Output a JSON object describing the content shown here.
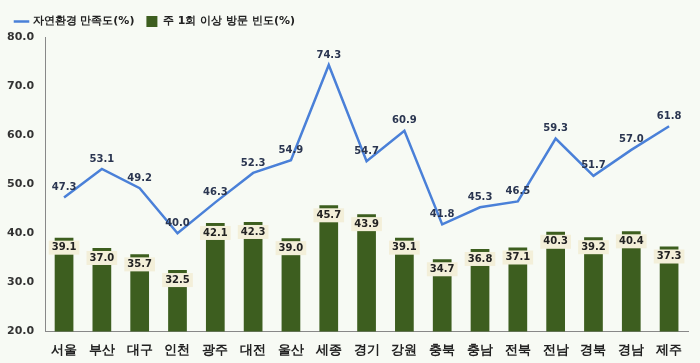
{
  "chart_data": {
    "type": "bar",
    "categories": [
      "서울",
      "부산",
      "대구",
      "인천",
      "광주",
      "대전",
      "울산",
      "세종",
      "경기",
      "강원",
      "충북",
      "충남",
      "전북",
      "전남",
      "경북",
      "경남",
      "제주"
    ],
    "series": [
      {
        "name": "주 1회 이상 방문 빈도(%)",
        "type": "bar",
        "color": "#3d5e1f",
        "values": [
          39.1,
          37.0,
          35.7,
          32.5,
          42.1,
          42.3,
          39.0,
          45.7,
          43.9,
          39.1,
          34.7,
          36.8,
          37.1,
          40.3,
          39.2,
          40.4,
          37.3
        ],
        "value_labels": [
          "39.1",
          "37.0",
          "35.7",
          "32.5",
          "42.1",
          "42.3",
          "39.0",
          "45.7",
          "43.9",
          "39.1",
          "34.7",
          "36.8",
          "37.1",
          "40.3",
          "39.2",
          "40.4",
          "37.3"
        ]
      },
      {
        "name": "자연환경 만족도(%)",
        "type": "line",
        "color": "#4a80d8",
        "marker": "none",
        "values": [
          47.3,
          53.1,
          49.2,
          40.0,
          46.3,
          52.3,
          54.9,
          74.3,
          54.7,
          60.9,
          41.8,
          45.3,
          46.5,
          59.3,
          51.7,
          57.0,
          61.8
        ],
        "value_labels": [
          "47.3",
          "53.1",
          "49.2",
          "40.0",
          "46.3",
          "52.3",
          "54.9",
          "74.3",
          "54.7",
          "60.9",
          "41.8",
          "45.3",
          "46.5",
          "59.3",
          "51.7",
          "57.0",
          "61.8"
        ]
      }
    ],
    "ylim": [
      20,
      80
    ],
    "yticks": [
      {
        "value": 20,
        "label": "20.0"
      },
      {
        "value": 30,
        "label": "30.0"
      },
      {
        "value": 40,
        "label": "40.0"
      },
      {
        "value": 50,
        "label": "50.0"
      },
      {
        "value": 60,
        "label": "60.0"
      },
      {
        "value": 70,
        "label": "70.0"
      },
      {
        "value": 80,
        "label": "80.0"
      }
    ],
    "grid": false,
    "legend": "top-left",
    "data_labels": true
  }
}
